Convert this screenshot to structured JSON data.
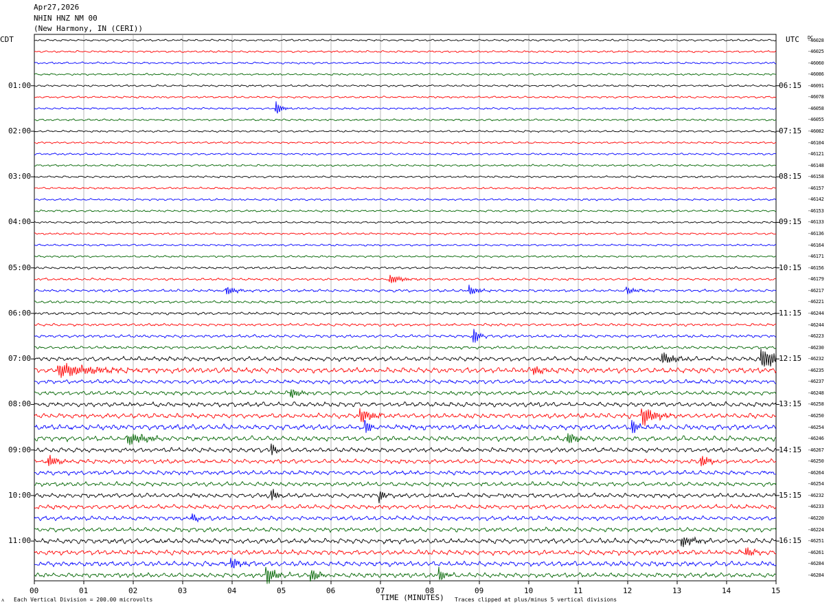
{
  "header": {
    "date": "Apr27,2026",
    "station": "NHIN HNZ NM 00",
    "location": "(New Harmony, IN (CERI))"
  },
  "left_tz": "CDT",
  "right_tz": "UTC",
  "dc_label": "DC",
  "footer": {
    "scale_icon": "ᴧ",
    "scale_note": "Each Vertical Division =  200.00 microvolts",
    "xlabel": "TIME (MINUTES)",
    "clip_note": "Traces clipped at plus/minus 5 vertical divisions"
  },
  "colors": {
    "cycle": [
      "#000000",
      "#ff0000",
      "#0000ff",
      "#006400"
    ],
    "grid": "#888888"
  },
  "chart_data": {
    "type": "line",
    "xlabel": "TIME (MINUTES)",
    "xlim": [
      0,
      15
    ],
    "x_ticks": [
      "00",
      "01",
      "02",
      "03",
      "04",
      "05",
      "06",
      "07",
      "08",
      "09",
      "10",
      "11",
      "12",
      "13",
      "14",
      "15"
    ],
    "left_labels": [
      "01:00",
      "02:00",
      "03:00",
      "04:00",
      "05:00",
      "06:00",
      "07:00",
      "08:00",
      "09:00",
      "10:00",
      "11:00"
    ],
    "right_labels": [
      "06:15",
      "07:15",
      "08:15",
      "09:15",
      "10:15",
      "11:15",
      "12:15",
      "13:15",
      "14:15",
      "15:15",
      "16:15"
    ],
    "hour_label_trace_index": [
      4,
      8,
      12,
      16,
      20,
      24,
      28,
      32,
      36,
      40,
      44
    ],
    "dc_offsets": [
      "-46028",
      "-46025",
      "-46060",
      "-46086",
      "-46091",
      "-46078",
      "-46058",
      "-46055",
      "-46082",
      "-46104",
      "-46121",
      "-46148",
      "-46158",
      "-46157",
      "-46142",
      "-46153",
      "-46133",
      "-46136",
      "-46164",
      "-46171",
      "-46156",
      "-46179",
      "-46217",
      "-46221",
      "-46244",
      "-46244",
      "-46223",
      "-46230",
      "-46232",
      "-46235",
      "-46237",
      "-46248",
      "-46258",
      "-46250",
      "-46254",
      "-46246",
      "-46267",
      "-46250",
      "-46264",
      "-46254",
      "-46232",
      "-46233",
      "-46220",
      "-46224",
      "-46251",
      "-46261",
      "-46284",
      "-46284"
    ],
    "trace_count": 48,
    "minutes_per_trace": 15,
    "amplitude_profile": [
      0.6,
      0.6,
      0.6,
      0.6,
      0.6,
      0.6,
      0.6,
      0.6,
      0.6,
      0.6,
      0.6,
      0.6,
      0.6,
      0.6,
      0.6,
      0.6,
      0.6,
      0.6,
      0.6,
      0.6,
      0.7,
      0.7,
      0.8,
      0.8,
      0.8,
      0.8,
      0.9,
      0.9,
      1.3,
      1.6,
      1.2,
      1.2,
      1.4,
      1.5,
      1.6,
      1.5,
      1.4,
      1.3,
      1.3,
      1.3,
      1.3,
      1.3,
      1.3,
      1.3,
      1.5,
      1.5,
      1.5,
      1.4
    ],
    "events": [
      {
        "trace": 6,
        "minute": 4.9,
        "amp": 10,
        "dur": 0.1
      },
      {
        "trace": 21,
        "minute": 7.2,
        "amp": 6,
        "dur": 0.3
      },
      {
        "trace": 22,
        "minute": 3.9,
        "amp": 6,
        "dur": 0.2
      },
      {
        "trace": 22,
        "minute": 8.8,
        "amp": 7,
        "dur": 0.2
      },
      {
        "trace": 22,
        "minute": 12.0,
        "amp": 5,
        "dur": 0.2
      },
      {
        "trace": 26,
        "minute": 8.9,
        "amp": 12,
        "dur": 0.1
      },
      {
        "trace": 28,
        "minute": 12.7,
        "amp": 9,
        "dur": 0.3
      },
      {
        "trace": 28,
        "minute": 14.7,
        "amp": 14,
        "dur": 0.6
      },
      {
        "trace": 29,
        "minute": 0.5,
        "amp": 10,
        "dur": 0.9
      },
      {
        "trace": 29,
        "minute": 10.1,
        "amp": 7,
        "dur": 0.2
      },
      {
        "trace": 31,
        "minute": 5.2,
        "amp": 7,
        "dur": 0.2
      },
      {
        "trace": 33,
        "minute": 6.6,
        "amp": 10,
        "dur": 0.3
      },
      {
        "trace": 33,
        "minute": 12.3,
        "amp": 14,
        "dur": 0.3
      },
      {
        "trace": 34,
        "minute": 6.7,
        "amp": 12,
        "dur": 0.1
      },
      {
        "trace": 34,
        "minute": 12.1,
        "amp": 12,
        "dur": 0.1
      },
      {
        "trace": 35,
        "minute": 1.9,
        "amp": 8,
        "dur": 0.5
      },
      {
        "trace": 35,
        "minute": 10.8,
        "amp": 9,
        "dur": 0.2
      },
      {
        "trace": 36,
        "minute": 4.8,
        "amp": 10,
        "dur": 0.1
      },
      {
        "trace": 37,
        "minute": 0.3,
        "amp": 8,
        "dur": 0.2
      },
      {
        "trace": 37,
        "minute": 13.5,
        "amp": 8,
        "dur": 0.2
      },
      {
        "trace": 40,
        "minute": 4.8,
        "amp": 10,
        "dur": 0.1
      },
      {
        "trace": 40,
        "minute": 7.0,
        "amp": 8,
        "dur": 0.1
      },
      {
        "trace": 42,
        "minute": 3.2,
        "amp": 7,
        "dur": 0.1
      },
      {
        "trace": 44,
        "minute": 13.1,
        "amp": 8,
        "dur": 0.3
      },
      {
        "trace": 45,
        "minute": 14.4,
        "amp": 7,
        "dur": 0.2
      },
      {
        "trace": 46,
        "minute": 4.0,
        "amp": 8,
        "dur": 0.2
      },
      {
        "trace": 47,
        "minute": 4.7,
        "amp": 14,
        "dur": 0.2
      },
      {
        "trace": 47,
        "minute": 5.6,
        "amp": 9,
        "dur": 0.2
      },
      {
        "trace": 47,
        "minute": 8.2,
        "amp": 10,
        "dur": 0.1
      }
    ]
  }
}
